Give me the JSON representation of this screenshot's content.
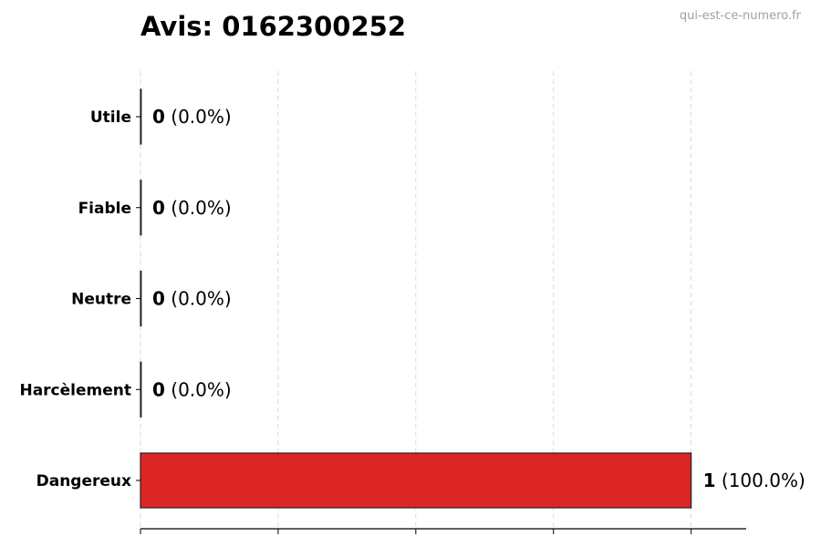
{
  "title": "Avis: 0162300252",
  "watermark": "qui-est-ce-numero.fr",
  "chart_data": {
    "type": "bar",
    "orientation": "horizontal",
    "title": "Avis: 0162300252",
    "xlabel": "",
    "ylabel": "",
    "categories": [
      "Utile",
      "Fiable",
      "Neutre",
      "Harcèlement",
      "Dangereux"
    ],
    "values": [
      0,
      0,
      0,
      0,
      1
    ],
    "data_labels": [
      {
        "count": "0",
        "pct": "(0.0%)"
      },
      {
        "count": "0",
        "pct": "(0.0%)"
      },
      {
        "count": "0",
        "pct": "(0.0%)"
      },
      {
        "count": "0",
        "pct": "(0.0%)"
      },
      {
        "count": "1",
        "pct": "(100.0%)"
      }
    ],
    "xlim": [
      0,
      1.1
    ],
    "xticks": [
      0,
      0.25,
      0.5,
      0.75,
      1.0
    ],
    "xtick_labels_shown": false,
    "grid": "x dashed",
    "bar_color": "#dc2626",
    "edge_color": "#222222"
  }
}
